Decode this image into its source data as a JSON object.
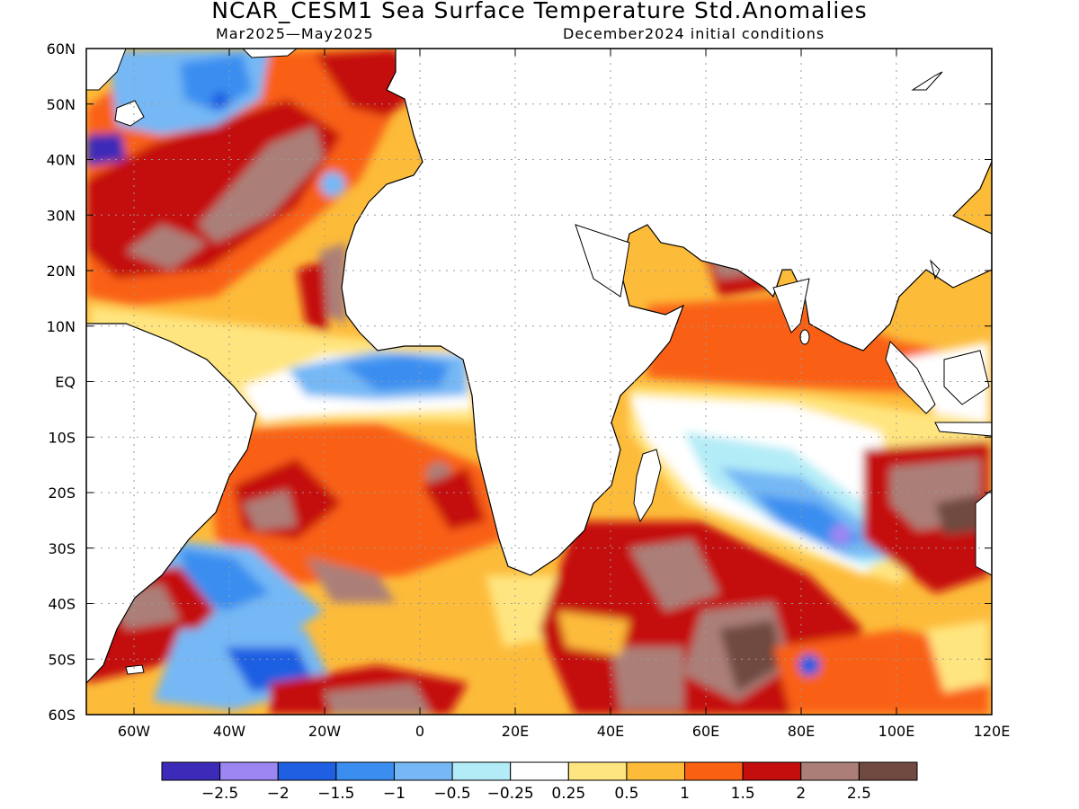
{
  "header": {
    "title": "NCAR_CESM1 Sea Surface Temperature Std.Anomalies",
    "period": "Mar2025—May2025",
    "init": "December2024 initial conditions"
  },
  "axes": {
    "lat_labels": [
      "60N",
      "50N",
      "40N",
      "30N",
      "20N",
      "10N",
      "EQ",
      "10S",
      "20S",
      "30S",
      "40S",
      "50S",
      "60S"
    ],
    "lon_labels": [
      "60W",
      "40W",
      "20W",
      "0",
      "20E",
      "40E",
      "60E",
      "80E",
      "100E",
      "120E"
    ]
  },
  "colorbar": {
    "levels": [
      "−2.5",
      "−2",
      "−1.5",
      "−1",
      "−0.5",
      "−0.25",
      "0.25",
      "0.5",
      "1",
      "1.5",
      "2",
      "2.5"
    ],
    "colors": [
      "#3c2bb8",
      "#9b86f2",
      "#1f5fe2",
      "#3b8ef0",
      "#75b8f5",
      "#b3ecf7",
      "#ffffff",
      "#ffe57f",
      "#fdbb3a",
      "#f96112",
      "#c40d0d",
      "#ab7f78",
      "#704a40"
    ]
  }
}
